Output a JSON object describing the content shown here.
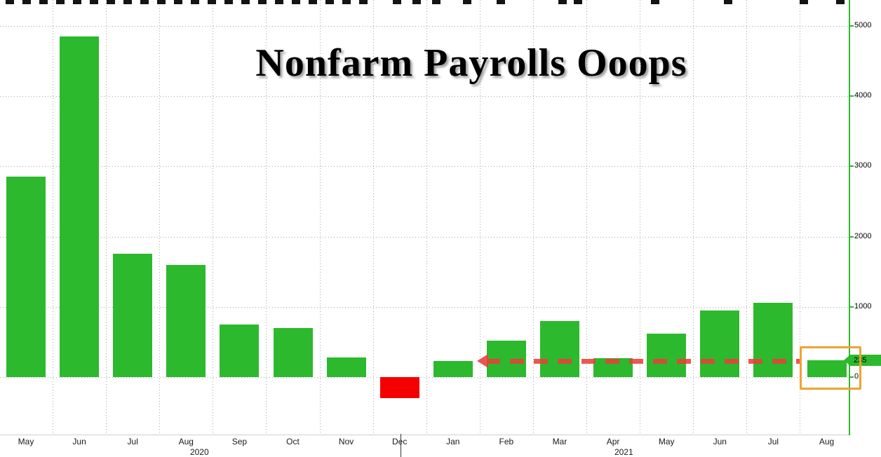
{
  "chart_data": {
    "type": "bar",
    "title": "Nonfarm Payrolls Ooops",
    "x_categories": [
      "May",
      "Jun",
      "Jul",
      "Aug",
      "Sep",
      "Oct",
      "Nov",
      "Dec",
      "Jan",
      "Feb",
      "Mar",
      "Apr",
      "May",
      "Jun",
      "Jul",
      "Aug"
    ],
    "values": [
      2850,
      4850,
      1760,
      1600,
      750,
      700,
      280,
      -300,
      233,
      520,
      800,
      270,
      620,
      950,
      1060,
      235
    ],
    "year_labels": [
      {
        "label": "2020",
        "center_index": 3.25
      },
      {
        "label": "2021",
        "center_index": 11.2
      }
    ],
    "xlabel": "",
    "ylabel": "",
    "yticks": [
      0,
      1000,
      2000,
      3000,
      4000,
      5000
    ],
    "ylim": [
      -820,
      5370
    ],
    "grid": true,
    "legend_position": "none",
    "last_value_tag": {
      "text": "235",
      "value": 235
    },
    "annotations": {
      "dashed_arrow": {
        "value": 230,
        "from_index": 14.55,
        "to_index": 8.45,
        "direction": "left"
      },
      "highlight_box_index": 15
    },
    "colors": {
      "bar_positive": "#2db92d",
      "bar_negative": "#f40000",
      "axis_green": "#2db92d",
      "arrow_red": "#e8403a",
      "highlight_orange": "#f0a233",
      "grid_gray": "#a6a6a6",
      "title_black": "#000000"
    }
  }
}
